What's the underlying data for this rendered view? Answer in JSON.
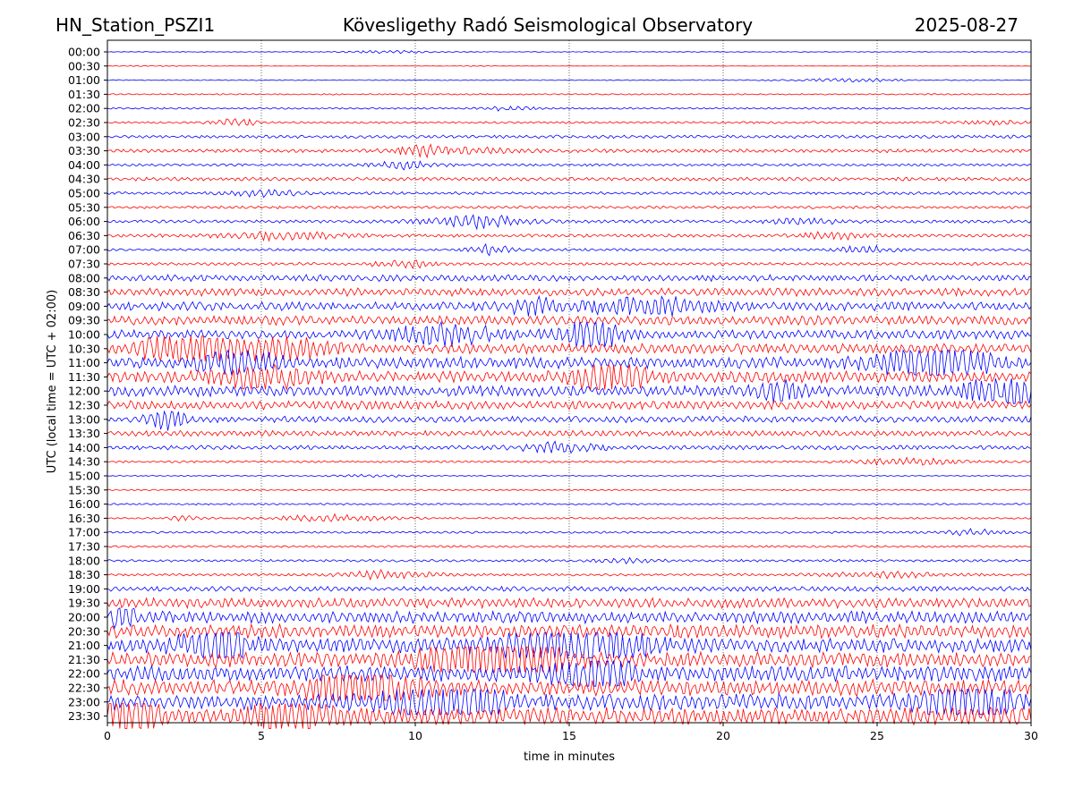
{
  "header": {
    "station": "HN_Station_PSZI1",
    "title": "Kövesligethy Radó Seismological Observatory",
    "date": "2025-08-27"
  },
  "chart_data": {
    "type": "line",
    "title": "Kövesligethy Radó Seismological Observatory",
    "xlabel": "time in minutes",
    "ylabel": "UTC (local time = UTC + 02:00)",
    "xlim": [
      0,
      30
    ],
    "x_ticks": [
      "0",
      "5",
      "10",
      "15",
      "20",
      "25",
      "30"
    ],
    "x_tick_values": [
      0,
      5,
      10,
      15,
      20,
      25,
      30
    ],
    "vertical_grid": true,
    "trace_colors": [
      "#0000ff",
      "#ff0000"
    ],
    "row_labels": [
      "00:00",
      "00:30",
      "01:00",
      "01:30",
      "02:00",
      "02:30",
      "03:00",
      "03:30",
      "04:00",
      "04:30",
      "05:00",
      "05:30",
      "06:00",
      "06:30",
      "07:00",
      "07:30",
      "08:00",
      "08:30",
      "09:00",
      "09:30",
      "10:00",
      "10:30",
      "11:00",
      "11:30",
      "12:00",
      "12:30",
      "13:00",
      "13:30",
      "14:00",
      "14:30",
      "15:00",
      "15:30",
      "16:00",
      "16:30",
      "17:00",
      "17:30",
      "18:00",
      "18:30",
      "19:00",
      "19:30",
      "20:00",
      "20:30",
      "21:00",
      "21:30",
      "22:00",
      "22:30",
      "23:00",
      "23:30"
    ],
    "row_noise_level": [
      0.1,
      0.05,
      0.15,
      0.2,
      0.25,
      0.3,
      0.45,
      0.5,
      0.35,
      0.5,
      0.4,
      0.4,
      0.45,
      0.45,
      0.35,
      0.4,
      0.9,
      1.1,
      1.2,
      1.3,
      1.3,
      1.4,
      1.6,
      1.6,
      1.5,
      1.2,
      0.9,
      0.8,
      0.6,
      0.3,
      0.15,
      0.2,
      0.25,
      0.25,
      0.3,
      0.3,
      0.35,
      0.35,
      0.7,
      1.4,
      1.7,
      1.9,
      2.0,
      2.1,
      2.2,
      2.3,
      2.3,
      2.4
    ]
  }
}
